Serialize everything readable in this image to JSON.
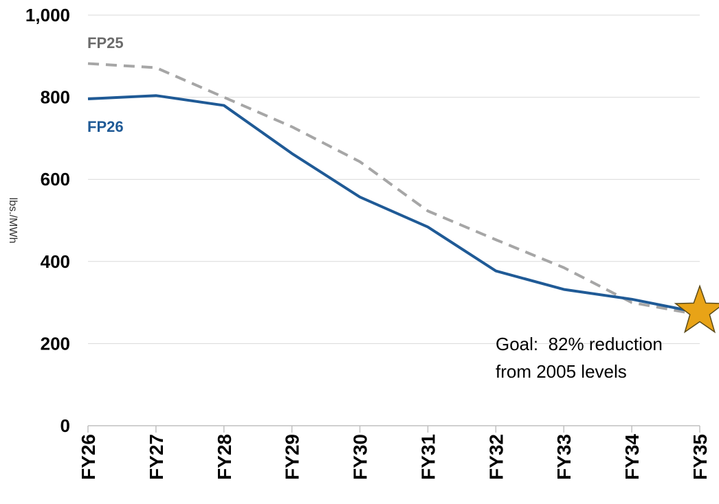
{
  "chart_data": {
    "type": "line",
    "title": "",
    "xlabel": "",
    "ylabel": "lbs./MWh",
    "ylim": [
      0,
      1000
    ],
    "yticks": [
      0,
      200,
      400,
      600,
      800,
      1000
    ],
    "ytick_labels": [
      "0",
      "200",
      "400",
      "600",
      "800",
      "1,000"
    ],
    "grid": true,
    "categories": [
      "FY26",
      "FY27",
      "FY28",
      "FY29",
      "FY30",
      "FY31",
      "FY32",
      "FY33",
      "FY34",
      "FY35"
    ],
    "series": [
      {
        "name": "FP25",
        "style": "dashed",
        "color": "#a6a6a6",
        "label_color": "#6b6b6b",
        "values": [
          882,
          872,
          800,
          728,
          643,
          523,
          453,
          385,
          300,
          270
        ]
      },
      {
        "name": "FP26",
        "style": "solid",
        "color": "#1f5a96",
        "label_color": "#1f5a96",
        "values": [
          796,
          804,
          780,
          663,
          557,
          484,
          377,
          332,
          308,
          275
        ]
      }
    ],
    "annotations": [
      {
        "id": "goal",
        "lines": [
          "Goal:  82% reduction",
          "from 2005 levels"
        ],
        "marker": "star",
        "marker_color": "#e8a317",
        "category": "FY35",
        "value": 275
      }
    ]
  }
}
